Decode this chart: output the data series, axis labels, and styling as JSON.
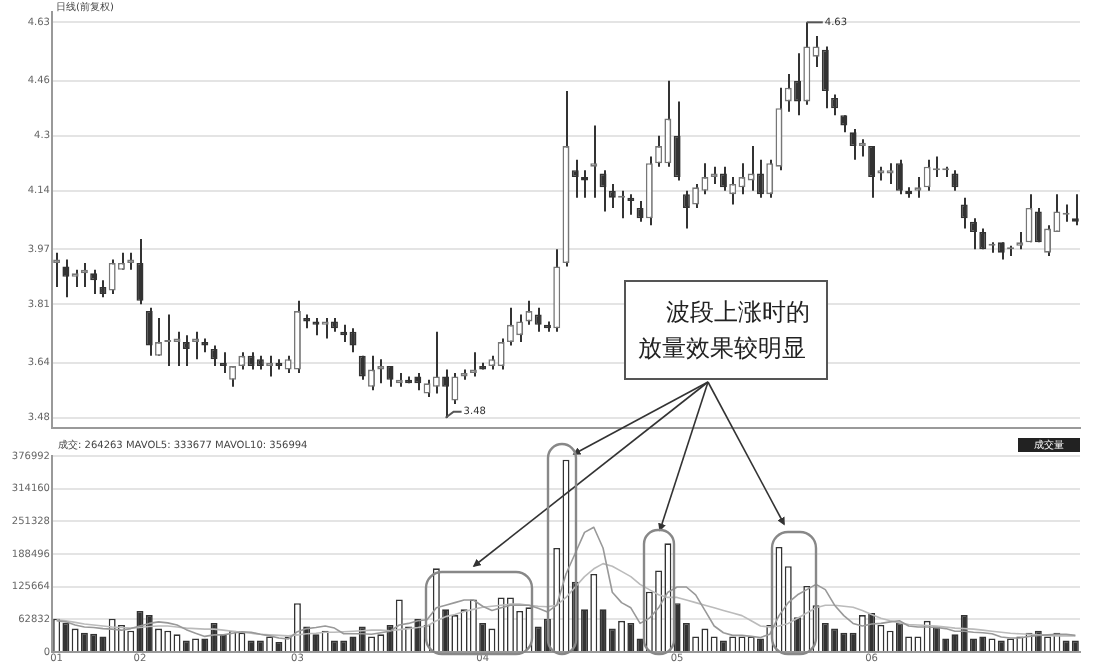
{
  "chart_data": [
    {
      "type": "candlestick",
      "subtitle": "日线(前复权)",
      "categories": [
        "01",
        null,
        null,
        null,
        null,
        null,
        null,
        null,
        null,
        "02",
        null,
        null,
        null,
        null,
        null,
        null,
        null,
        null,
        null,
        null,
        null,
        null,
        null,
        null,
        null,
        null,
        "03",
        null,
        null,
        null,
        null,
        null,
        null,
        null,
        null,
        null,
        null,
        null,
        null,
        null,
        null,
        null,
        null,
        null,
        null,
        null,
        "04",
        null,
        null,
        null,
        null,
        null,
        null,
        null,
        null,
        null,
        null,
        null,
        null,
        null,
        null,
        null,
        null,
        null,
        null,
        null,
        null,
        "05",
        null,
        null,
        null,
        null,
        null,
        null,
        null,
        null,
        null,
        null,
        null,
        null,
        null,
        null,
        null,
        null,
        null,
        null,
        null,
        null,
        "06",
        null,
        null,
        null,
        null,
        null,
        null,
        null,
        null,
        null,
        null,
        null,
        null,
        null,
        null,
        null,
        null,
        null,
        null,
        null,
        null,
        null,
        null
      ],
      "ohlc": [
        [
          3.93,
          3.96,
          3.86,
          3.94
        ],
        [
          3.92,
          3.94,
          3.83,
          3.89
        ],
        [
          3.89,
          3.91,
          3.86,
          3.9
        ],
        [
          3.9,
          3.93,
          3.86,
          3.91
        ],
        [
          3.9,
          3.91,
          3.84,
          3.88
        ],
        [
          3.86,
          3.88,
          3.83,
          3.84
        ],
        [
          3.85,
          3.94,
          3.84,
          3.93
        ],
        [
          3.91,
          3.96,
          3.91,
          3.93
        ],
        [
          3.93,
          3.96,
          3.91,
          3.94
        ],
        [
          3.93,
          4.0,
          3.81,
          3.82
        ],
        [
          3.79,
          3.8,
          3.66,
          3.69
        ],
        [
          3.66,
          3.77,
          3.66,
          3.7
        ],
        [
          3.7,
          3.78,
          3.63,
          3.7
        ],
        [
          3.7,
          3.73,
          3.63,
          3.71
        ],
        [
          3.7,
          3.72,
          3.63,
          3.68
        ],
        [
          3.7,
          3.73,
          3.65,
          3.71
        ],
        [
          3.7,
          3.71,
          3.67,
          3.69
        ],
        [
          3.68,
          3.69,
          3.63,
          3.65
        ],
        [
          3.64,
          3.67,
          3.61,
          3.63
        ],
        [
          3.59,
          3.63,
          3.57,
          3.63
        ],
        [
          3.63,
          3.67,
          3.62,
          3.66
        ],
        [
          3.66,
          3.67,
          3.62,
          3.63
        ],
        [
          3.65,
          3.66,
          3.62,
          3.63
        ],
        [
          3.63,
          3.66,
          3.6,
          3.64
        ],
        [
          3.64,
          3.65,
          3.62,
          3.63
        ],
        [
          3.62,
          3.66,
          3.61,
          3.65
        ],
        [
          3.62,
          3.82,
          3.61,
          3.79
        ],
        [
          3.77,
          3.78,
          3.74,
          3.76
        ],
        [
          3.76,
          3.77,
          3.72,
          3.75
        ],
        [
          3.75,
          3.77,
          3.71,
          3.76
        ],
        [
          3.76,
          3.77,
          3.73,
          3.74
        ],
        [
          3.73,
          3.75,
          3.7,
          3.72
        ],
        [
          3.73,
          3.74,
          3.67,
          3.69
        ],
        [
          3.66,
          3.66,
          3.59,
          3.6
        ],
        [
          3.57,
          3.66,
          3.56,
          3.62
        ],
        [
          3.62,
          3.65,
          3.58,
          3.63
        ],
        [
          3.63,
          3.63,
          3.57,
          3.59
        ],
        [
          3.58,
          3.61,
          3.57,
          3.59
        ],
        [
          3.59,
          3.6,
          3.58,
          3.58
        ],
        [
          3.6,
          3.61,
          3.56,
          3.58
        ],
        [
          3.55,
          3.59,
          3.54,
          3.58
        ],
        [
          3.57,
          3.73,
          3.55,
          3.6
        ],
        [
          3.6,
          3.62,
          3.48,
          3.57
        ],
        [
          3.53,
          3.61,
          3.52,
          3.6
        ],
        [
          3.6,
          3.62,
          3.59,
          3.61
        ],
        [
          3.61,
          3.67,
          3.6,
          3.62
        ],
        [
          3.63,
          3.64,
          3.62,
          3.62
        ],
        [
          3.63,
          3.66,
          3.62,
          3.65
        ],
        [
          3.63,
          3.71,
          3.62,
          3.7
        ],
        [
          3.7,
          3.8,
          3.69,
          3.75
        ],
        [
          3.72,
          3.78,
          3.7,
          3.76
        ],
        [
          3.76,
          3.82,
          3.75,
          3.79
        ],
        [
          3.78,
          3.8,
          3.73,
          3.75
        ],
        [
          3.75,
          3.76,
          3.73,
          3.74
        ],
        [
          3.74,
          3.97,
          3.73,
          3.92
        ],
        [
          3.93,
          4.43,
          3.92,
          4.27
        ],
        [
          4.2,
          4.23,
          4.12,
          4.18
        ],
        [
          4.18,
          4.2,
          4.12,
          4.17
        ],
        [
          4.21,
          4.33,
          4.12,
          4.22
        ],
        [
          4.19,
          4.2,
          4.08,
          4.15
        ],
        [
          4.14,
          4.16,
          4.09,
          4.12
        ],
        [
          4.12,
          4.14,
          4.06,
          4.12
        ],
        [
          4.12,
          4.13,
          4.07,
          4.11
        ],
        [
          4.09,
          4.11,
          4.05,
          4.06
        ],
        [
          4.06,
          4.24,
          4.04,
          4.22
        ],
        [
          4.22,
          4.3,
          4.21,
          4.27
        ],
        [
          4.22,
          4.46,
          4.21,
          4.35
        ],
        [
          4.3,
          4.4,
          4.17,
          4.18
        ],
        [
          4.13,
          4.14,
          4.03,
          4.09
        ],
        [
          4.1,
          4.16,
          4.09,
          4.15
        ],
        [
          4.14,
          4.22,
          4.13,
          4.18
        ],
        [
          4.18,
          4.21,
          4.16,
          4.19
        ],
        [
          4.19,
          4.21,
          4.14,
          4.15
        ],
        [
          4.13,
          4.18,
          4.1,
          4.16
        ],
        [
          4.15,
          4.22,
          4.13,
          4.18
        ],
        [
          4.17,
          4.27,
          4.14,
          4.19
        ],
        [
          4.19,
          4.23,
          4.12,
          4.13
        ],
        [
          4.13,
          4.23,
          4.12,
          4.22
        ],
        [
          4.21,
          4.44,
          4.2,
          4.38
        ],
        [
          4.4,
          4.48,
          4.37,
          4.44
        ],
        [
          4.46,
          4.54,
          4.36,
          4.4
        ],
        [
          4.4,
          4.63,
          4.39,
          4.56
        ],
        [
          4.53,
          4.59,
          4.5,
          4.56
        ],
        [
          4.55,
          4.56,
          4.38,
          4.43
        ],
        [
          4.41,
          4.42,
          4.36,
          4.38
        ],
        [
          4.36,
          4.36,
          4.31,
          4.33
        ],
        [
          4.31,
          4.32,
          4.23,
          4.27
        ],
        [
          4.27,
          4.29,
          4.24,
          4.28
        ],
        [
          4.27,
          4.27,
          4.12,
          4.18
        ],
        [
          4.19,
          4.21,
          4.17,
          4.2
        ],
        [
          4.19,
          4.22,
          4.16,
          4.2
        ],
        [
          4.22,
          4.23,
          4.13,
          4.14
        ],
        [
          4.14,
          4.15,
          4.12,
          4.13
        ],
        [
          4.14,
          4.18,
          4.12,
          4.15
        ],
        [
          4.15,
          4.23,
          4.14,
          4.21
        ],
        [
          4.2,
          4.24,
          4.18,
          4.2
        ],
        [
          4.2,
          4.21,
          4.18,
          4.2
        ],
        [
          4.19,
          4.2,
          4.14,
          4.15
        ],
        [
          4.1,
          4.12,
          4.03,
          4.06
        ],
        [
          4.05,
          4.06,
          3.97,
          4.02
        ],
        [
          4.02,
          4.03,
          3.97,
          3.97
        ],
        [
          3.98,
          3.99,
          3.96,
          3.98
        ],
        [
          3.99,
          3.99,
          3.94,
          3.96
        ],
        [
          3.97,
          3.98,
          3.95,
          3.97
        ],
        [
          3.98,
          4.02,
          3.97,
          3.99
        ],
        [
          3.99,
          4.13,
          3.99,
          4.09
        ],
        [
          4.08,
          4.09,
          3.99,
          3.99
        ],
        [
          3.96,
          4.04,
          3.95,
          4.03
        ],
        [
          4.02,
          4.13,
          4.02,
          4.08
        ],
        [
          4.07,
          4.1,
          4.05,
          4.07
        ],
        [
          4.06,
          4.13,
          4.04,
          4.05
        ]
      ],
      "ylim": [
        3.45,
        4.66
      ],
      "yticks": [
        3.48,
        3.64,
        3.81,
        3.97,
        4.14,
        4.3,
        4.46,
        4.63
      ],
      "grid": "y",
      "tick_labels": "y",
      "annotations": [
        "波段上涨时的放量效果较明显",
        "4.63",
        "3.48"
      ]
    },
    {
      "type": "bar",
      "categories": [
        "01",
        null,
        null,
        null,
        null,
        null,
        null,
        null,
        null,
        "02",
        null,
        null,
        null,
        null,
        null,
        null,
        null,
        null,
        null,
        null,
        null,
        null,
        null,
        null,
        null,
        null,
        "03",
        null,
        null,
        null,
        null,
        null,
        null,
        null,
        null,
        null,
        null,
        null,
        null,
        null,
        null,
        null,
        null,
        null,
        null,
        null,
        "04",
        null,
        null,
        null,
        null,
        null,
        null,
        null,
        null,
        null,
        null,
        null,
        null,
        null,
        null,
        null,
        null,
        null,
        null,
        null,
        null,
        "05",
        null,
        null,
        null,
        null,
        null,
        null,
        null,
        null,
        null,
        null,
        null,
        null,
        null,
        null,
        null,
        null,
        null,
        null,
        null,
        null,
        "06",
        null,
        null,
        null,
        null,
        null,
        null,
        null,
        null,
        null,
        null,
        null,
        null,
        null,
        null,
        null,
        null,
        null,
        null,
        null,
        null,
        null,
        null
      ],
      "series": [
        {
          "type": "bar",
          "values": [
            64000,
            56000,
            45000,
            37000,
            35000,
            30000,
            64000,
            52000,
            41000,
            79000,
            71000,
            45000,
            41000,
            34000,
            22000,
            26000,
            26000,
            56000,
            34000,
            41000,
            37000,
            22000,
            22000,
            30000,
            19000,
            30000,
            94000,
            49000,
            34000,
            41000,
            22000,
            22000,
            30000,
            49000,
            30000,
            34000,
            52000,
            101000,
            49000,
            64000,
            52000,
            161000,
            82000,
            71000,
            82000,
            101000,
            56000,
            45000,
            105000,
            105000,
            79000,
            86000,
            49000,
            64000,
            200000,
            370000,
            135000,
            82000,
            150000,
            82000,
            45000,
            60000,
            56000,
            26000,
            116000,
            157000,
            209000,
            94000,
            56000,
            30000,
            45000,
            30000,
            22000,
            30000,
            30000,
            30000,
            26000,
            52000,
            202000,
            165000,
            67000,
            127000,
            90000,
            56000,
            45000,
            37000,
            37000,
            71000,
            75000,
            52000,
            41000,
            56000,
            30000,
            30000,
            60000,
            49000,
            26000,
            34000,
            71000,
            26000,
            30000,
            26000,
            22000,
            26000,
            30000,
            37000,
            41000,
            30000,
            37000,
            22000,
            22000
          ],
          "colors": [
            "#ffffff",
            "#333333",
            "#ffffff",
            "#333333",
            "#333333",
            "#333333",
            "#ffffff",
            "#ffffff",
            "#ffffff",
            "#333333",
            "#333333",
            "#ffffff",
            "#ffffff",
            "#ffffff",
            "#333333",
            "#ffffff",
            "#333333",
            "#333333",
            "#333333",
            "#ffffff",
            "#ffffff",
            "#333333",
            "#333333",
            "#ffffff",
            "#333333",
            "#ffffff",
            "#ffffff",
            "#333333",
            "#333333",
            "#ffffff",
            "#333333",
            "#333333",
            "#333333",
            "#333333",
            "#ffffff",
            "#ffffff",
            "#333333",
            "#ffffff",
            "#ffffff",
            "#333333",
            "#ffffff",
            "#ffffff",
            "#333333",
            "#ffffff",
            "#ffffff",
            "#ffffff",
            "#333333",
            "#ffffff",
            "#ffffff",
            "#ffffff",
            "#ffffff",
            "#ffffff",
            "#333333",
            "#333333",
            "#ffffff",
            "#ffffff",
            "#333333",
            "#333333",
            "#ffffff",
            "#333333",
            "#333333",
            "#ffffff",
            "#333333",
            "#333333",
            "#ffffff",
            "#ffffff",
            "#ffffff",
            "#333333",
            "#333333",
            "#ffffff",
            "#ffffff",
            "#ffffff",
            "#333333",
            "#ffffff",
            "#ffffff",
            "#ffffff",
            "#333333",
            "#ffffff",
            "#ffffff",
            "#ffffff",
            "#333333",
            "#ffffff",
            "#ffffff",
            "#333333",
            "#333333",
            "#333333",
            "#333333",
            "#ffffff",
            "#333333",
            "#ffffff",
            "#ffffff",
            "#333333",
            "#ffffff",
            "#ffffff",
            "#ffffff",
            "#333333",
            "#333333",
            "#333333",
            "#333333",
            "#333333",
            "#333333",
            "#ffffff",
            "#333333",
            "#ffffff",
            "#ffffff",
            "#ffffff",
            "#333333",
            "#ffffff",
            "#ffffff",
            "#333333",
            "#333333"
          ]
        },
        {
          "type": "line",
          "color": "#999999",
          "values": [
            60000,
            58000,
            52000,
            48000,
            47000,
            45000,
            44000,
            42000,
            45000,
            50000,
            55000,
            58000,
            56000,
            52000,
            43000,
            36000,
            30000,
            33000,
            33000,
            36000,
            39000,
            38000,
            34000,
            31000,
            27000,
            25000,
            39000,
            45000,
            47000,
            50000,
            46000,
            35000,
            35000,
            35000,
            34000,
            37000,
            40000,
            52000,
            55000,
            60000,
            62000,
            85000,
            90000,
            95000,
            100000,
            100000,
            88000,
            80000,
            85000,
            90000,
            90000,
            90000,
            84000,
            77000,
            90000,
            150000,
            190000,
            230000,
            240000,
            200000,
            115000,
            95000,
            85000,
            55000,
            65000,
            85000,
            115000,
            125000,
            125000,
            110000,
            80000,
            50000,
            37000,
            32000,
            32000,
            30000,
            28000,
            34000,
            70000,
            95000,
            110000,
            120000,
            130000,
            120000,
            90000,
            70000,
            55000,
            50000,
            54000,
            55000,
            58000,
            60000,
            50000,
            48000,
            48000,
            47000,
            45000,
            40000,
            40000,
            38000,
            37000,
            35000,
            29000,
            27000,
            27000,
            30000,
            32000,
            33000,
            34000,
            34000,
            32000
          ]
        },
        {
          "type": "line",
          "color": "#bbbbbb",
          "values": [
            62000,
            60000,
            57000,
            54000,
            52000,
            50000,
            48000,
            47000,
            46000,
            47000,
            49000,
            50000,
            50000,
            48000,
            46000,
            45000,
            44000,
            44000,
            42000,
            40000,
            38000,
            36000,
            34000,
            33000,
            32000,
            31000,
            33000,
            35000,
            36000,
            38000,
            38000,
            39000,
            40000,
            41000,
            42000,
            42000,
            41000,
            43000,
            45000,
            47000,
            50000,
            60000,
            68000,
            72000,
            78000,
            82000,
            86000,
            88000,
            90000,
            92000,
            92000,
            90000,
            88000,
            87000,
            90000,
            105000,
            125000,
            145000,
            160000,
            170000,
            165000,
            155000,
            145000,
            130000,
            120000,
            110000,
            105000,
            105000,
            100000,
            95000,
            90000,
            85000,
            80000,
            75000,
            70000,
            60000,
            50000,
            48000,
            50000,
            55000,
            65000,
            75000,
            85000,
            90000,
            90000,
            88000,
            86000,
            80000,
            72000,
            65000,
            60000,
            56000,
            53000,
            52000,
            51000,
            50000,
            48000,
            46000,
            45000,
            44000,
            42000,
            40000,
            38000,
            36000,
            35000,
            34000,
            33000,
            32000,
            31000,
            31000,
            31000
          ]
        }
      ],
      "ylim": [
        0,
        376992
      ],
      "yticks": [
        0,
        62832,
        125664,
        188496,
        251328,
        314160,
        376992
      ],
      "grid": "y",
      "annotations": [
        "成交: 264263 MAVOL5: 333677 MAVOL10: 356994",
        "成交量"
      ]
    }
  ]
}
